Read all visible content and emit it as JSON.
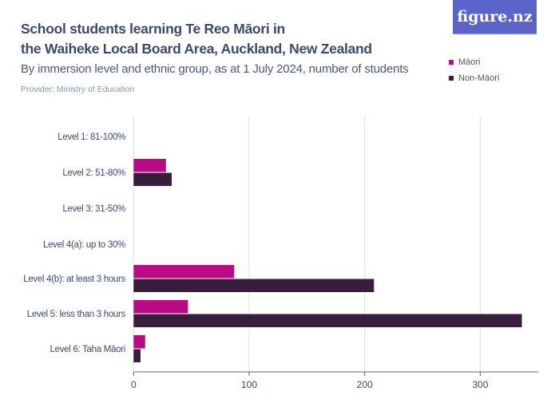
{
  "header": {
    "title_line1": "School students learning Te Reo Māori in",
    "title_line2": "the Waiheke Local Board Area, Auckland, New Zealand",
    "subtitle": "By immersion level and ethnic group, as at 1 July 2024, number of students",
    "provider": "Provider: Ministry of Education",
    "logo": "figure.nz"
  },
  "chart_data": {
    "type": "bar",
    "orientation": "horizontal",
    "title": "School students learning Te Reo Māori in the Waiheke Local Board Area, Auckland, New Zealand",
    "subtitle": "By immersion level and ethnic group, as at 1 July 2024, number of students",
    "categories": [
      "Level 1: 81-100%",
      "Level 2: 51-80%",
      "Level 3: 31-50%",
      "Level 4(a): up to 30%",
      "Level 4(b): at least 3 hours",
      "Level 5: less than 3 hours",
      "Level 6: Taha Māori"
    ],
    "series": [
      {
        "name": "Māori",
        "color": "#b90b85",
        "values": [
          0,
          28,
          0,
          0,
          87,
          47,
          10
        ]
      },
      {
        "name": "Non-Māori",
        "color": "#381e3c",
        "values": [
          0,
          33,
          0,
          0,
          208,
          336,
          6
        ]
      }
    ],
    "xlim": [
      0,
      350
    ],
    "xticks": [
      0,
      100,
      200,
      300
    ],
    "grid": true,
    "legend": "top-right"
  }
}
